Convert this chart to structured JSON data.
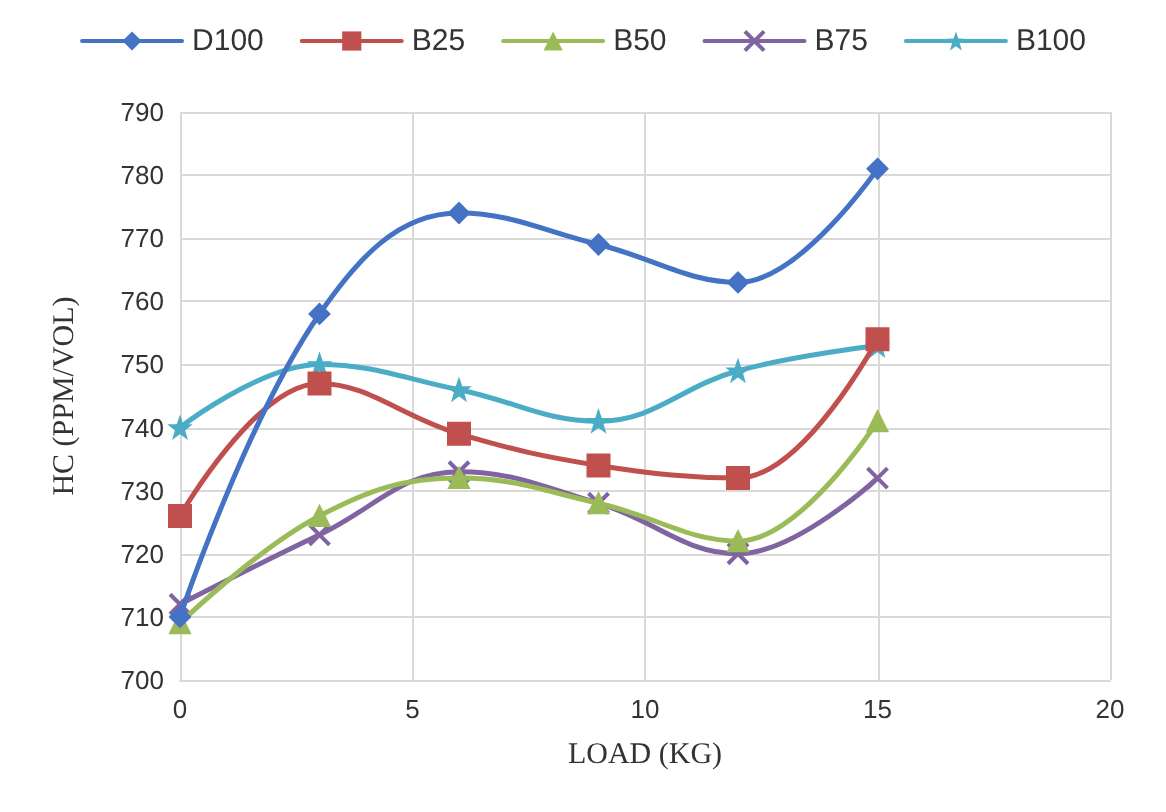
{
  "chart_data": {
    "type": "line",
    "xlabel": "LOAD (KG)",
    "ylabel": "HC (PPM/VOL)",
    "x": [
      0,
      3,
      6,
      9,
      12,
      15
    ],
    "series": [
      {
        "name": "D100",
        "color": "#4472c4",
        "marker": "diamond",
        "values": [
          710,
          758,
          774,
          769,
          763,
          781
        ]
      },
      {
        "name": "B25",
        "color": "#c0504d",
        "marker": "square",
        "values": [
          726,
          747,
          739,
          734,
          732,
          754
        ]
      },
      {
        "name": "B50",
        "color": "#9bbb59",
        "marker": "triangle",
        "values": [
          709,
          726,
          732,
          728,
          722,
          741
        ]
      },
      {
        "name": "B75",
        "color": "#8064a2",
        "marker": "cross",
        "values": [
          712,
          723,
          733,
          728,
          720,
          732
        ]
      },
      {
        "name": "B100",
        "color": "#4bacc6",
        "marker": "star",
        "values": [
          740,
          750,
          746,
          741,
          749,
          753
        ]
      }
    ],
    "xlim": [
      0,
      20
    ],
    "xticks": [
      0,
      5,
      10,
      15,
      20
    ],
    "ylim": [
      700,
      790
    ],
    "yticks": [
      700,
      710,
      720,
      730,
      740,
      750,
      760,
      770,
      780,
      790
    ],
    "grid": true,
    "legend": "top",
    "line_style": "solid"
  }
}
